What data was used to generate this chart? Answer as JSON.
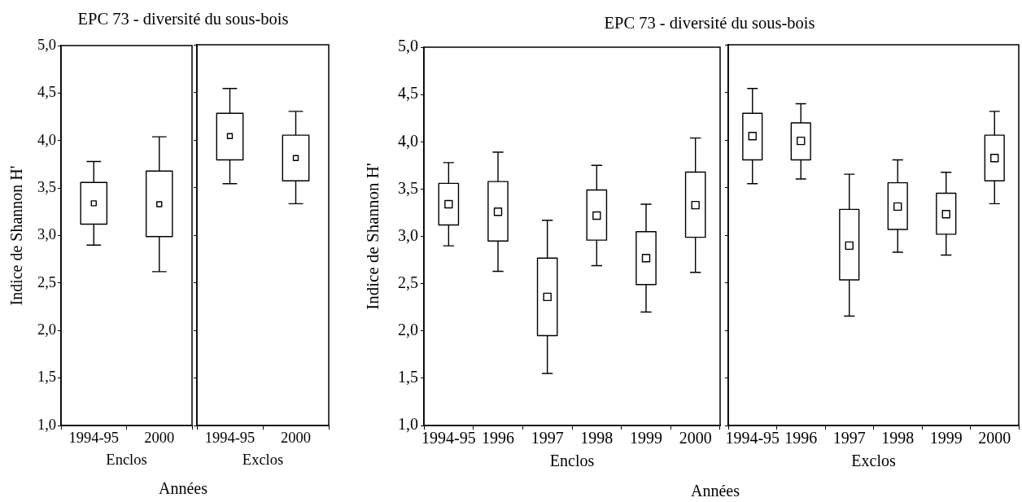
{
  "chart_data": [
    {
      "type": "box",
      "title": "EPC 73 - diversité du sous-bois",
      "ylabel": "Indice de Shannon H'",
      "xlabel": "Enclos",
      "color": "#000000",
      "marker": "square",
      "categories": [
        "1994-95",
        "2000"
      ],
      "boxes": [
        {
          "low": 2.9,
          "q1": 3.12,
          "median": 3.34,
          "q3": 3.56,
          "high": 3.78
        },
        {
          "low": 2.62,
          "q1": 2.99,
          "median": 3.33,
          "q3": 3.68,
          "high": 4.04
        }
      ],
      "ylim": [
        1,
        5
      ],
      "yticks": [
        {
          "value": 1,
          "label": "1,0"
        },
        {
          "value": 1.5,
          "label": "1,5"
        },
        {
          "value": 2,
          "label": "2,0"
        },
        {
          "value": 2.5,
          "label": "2,5"
        },
        {
          "value": 3,
          "label": "3,0"
        },
        {
          "value": 3.5,
          "label": "3,5"
        },
        {
          "value": 4,
          "label": "4,0"
        },
        {
          "value": 4.5,
          "label": "4,5"
        },
        {
          "value": 5,
          "label": "5,0"
        }
      ],
      "annotations": [
        "Années"
      ]
    },
    {
      "type": "box",
      "xlabel": "Exclos",
      "color": "#000000",
      "marker": "square",
      "categories": [
        "1994-95",
        "2000"
      ],
      "boxes": [
        {
          "low": 3.54,
          "q1": 3.79,
          "median": 4.04,
          "q3": 4.28,
          "high": 4.54
        },
        {
          "low": 3.33,
          "q1": 3.57,
          "median": 3.81,
          "q3": 4.05,
          "high": 4.3
        }
      ],
      "ylim": [
        1,
        5
      ],
      "yticks": [
        {
          "value": 1,
          "label": null
        },
        {
          "value": 1.5,
          "label": null
        },
        {
          "value": 2,
          "label": null
        },
        {
          "value": 2.5,
          "label": null
        },
        {
          "value": 3,
          "label": null
        },
        {
          "value": 3.5,
          "label": null
        },
        {
          "value": 4,
          "label": null
        },
        {
          "value": 4.5,
          "label": null
        },
        {
          "value": 5,
          "label": null
        }
      ],
      "tick_labels": "x"
    },
    {
      "type": "box",
      "title": "EPC 73 - diversité du sous-bois",
      "ylabel": "Indice de Shannon H'",
      "xlabel": "Enclos",
      "color": "#000000",
      "marker": "square",
      "categories": [
        "1994-95",
        "1996",
        "1997",
        "1998",
        "1999",
        "2000"
      ],
      "boxes": [
        {
          "low": 2.9,
          "q1": 3.12,
          "median": 3.34,
          "q3": 3.56,
          "high": 3.78
        },
        {
          "low": 2.63,
          "q1": 2.95,
          "median": 3.26,
          "q3": 3.58,
          "high": 3.89
        },
        {
          "low": 1.55,
          "q1": 1.95,
          "median": 2.36,
          "q3": 2.77,
          "high": 3.17
        },
        {
          "low": 2.69,
          "q1": 2.96,
          "median": 3.22,
          "q3": 3.49,
          "high": 3.75
        },
        {
          "low": 2.2,
          "q1": 2.49,
          "median": 2.77,
          "q3": 3.05,
          "high": 3.34
        },
        {
          "low": 2.62,
          "q1": 2.99,
          "median": 3.33,
          "q3": 3.68,
          "high": 4.04
        }
      ],
      "ylim": [
        1,
        5
      ],
      "yticks": [
        {
          "value": 1,
          "label": "1,0"
        },
        {
          "value": 1.5,
          "label": "1,5"
        },
        {
          "value": 2,
          "label": "2,0"
        },
        {
          "value": 2.5,
          "label": "2,5"
        },
        {
          "value": 3,
          "label": "3,0"
        },
        {
          "value": 3.5,
          "label": "3,5"
        },
        {
          "value": 4,
          "label": "4,0"
        },
        {
          "value": 4.5,
          "label": "4,5"
        },
        {
          "value": 5,
          "label": "5,0"
        }
      ],
      "annotations": [
        "Années"
      ]
    },
    {
      "type": "box",
      "xlabel": "Exclos",
      "color": "#000000",
      "marker": "square",
      "categories": [
        "1994-95",
        "1996",
        "1997",
        "1998",
        "1999",
        "2000"
      ],
      "boxes": [
        {
          "low": 3.54,
          "q1": 3.79,
          "median": 4.04,
          "q3": 4.28,
          "high": 4.54
        },
        {
          "low": 3.59,
          "q1": 3.79,
          "median": 3.99,
          "q3": 4.18,
          "high": 4.38
        },
        {
          "low": 2.15,
          "q1": 2.53,
          "median": 2.89,
          "q3": 3.27,
          "high": 3.64
        },
        {
          "low": 2.82,
          "q1": 3.06,
          "median": 3.3,
          "q3": 3.55,
          "high": 3.79
        },
        {
          "low": 2.79,
          "q1": 3.01,
          "median": 3.22,
          "q3": 3.44,
          "high": 3.66
        },
        {
          "low": 3.33,
          "q1": 3.57,
          "median": 3.81,
          "q3": 4.05,
          "high": 4.3
        }
      ],
      "ylim": [
        1,
        5
      ],
      "yticks": [
        {
          "value": 1,
          "label": null
        },
        {
          "value": 1.5,
          "label": null
        },
        {
          "value": 2,
          "label": null
        },
        {
          "value": 2.5,
          "label": null
        },
        {
          "value": 3,
          "label": null
        },
        {
          "value": 3.5,
          "label": null
        },
        {
          "value": 4,
          "label": null
        },
        {
          "value": 4.5,
          "label": null
        },
        {
          "value": 5,
          "label": null
        }
      ],
      "tick_labels": "x"
    }
  ]
}
